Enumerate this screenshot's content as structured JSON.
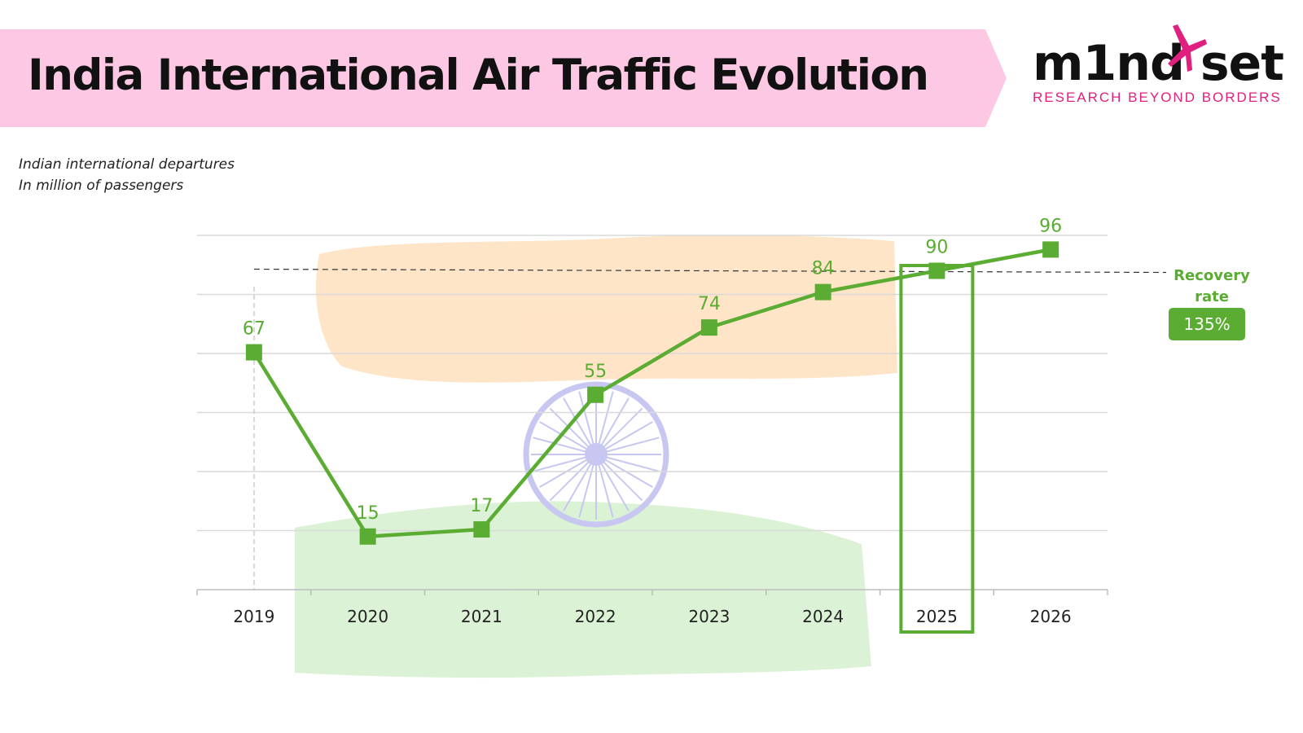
{
  "header": {
    "title": "India International Air Traffic Evolution",
    "banner_color": "#fdc8e4"
  },
  "logo": {
    "wordmark": "m1nd set",
    "tagline": "RESEARCH BEYOND BORDERS",
    "accent_color": "#e0207e",
    "icon": "bird-icon"
  },
  "subtitle": {
    "line1": "Indian international departures",
    "line2": "In million of passengers"
  },
  "recovery": {
    "label_line1": "Recovery",
    "label_line2": "rate",
    "value": "135%"
  },
  "colors": {
    "series": "#5aac32",
    "highlight_box": "#5aac32",
    "grid": "#d9d9d9",
    "axis_text": "#222222",
    "flag_saffron": "#ffcf9a",
    "flag_green": "#bfe8b4",
    "chakra": "#9a9ae6"
  },
  "chart_data": {
    "type": "line",
    "x": [
      "2019",
      "2020",
      "2021",
      "2022",
      "2023",
      "2024",
      "2025",
      "2026"
    ],
    "series": [
      {
        "values": [
          67,
          15,
          17,
          55,
          74,
          84,
          90,
          96
        ]
      }
    ],
    "data_labels": [
      "67",
      "15",
      "17",
      "55",
      "74",
      "84",
      "90",
      "96"
    ],
    "highlighted_category": "2025",
    "reference_line": {
      "value": 90,
      "style": "dashed"
    },
    "grid": true,
    "legend": "none"
  }
}
